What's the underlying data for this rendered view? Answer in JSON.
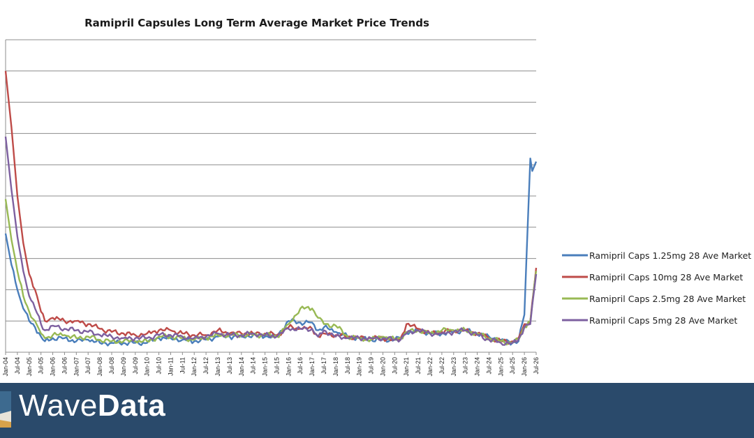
{
  "brand": {
    "name_regular": "Wave",
    "name_bold": "Data",
    "accent": "#2a4a6b"
  },
  "chart_data": {
    "type": "line",
    "title": "Ramipril Capsules Long Term Average Market Price Trends",
    "xlabel": "",
    "ylabel": "",
    "grid": true,
    "legend_position": "right",
    "ylim": [
      0,
      10
    ],
    "x_tick_labels": [
      "Jan-04",
      "Jul-04",
      "Jan-05",
      "Jul-05",
      "Jan-06",
      "Jul-06",
      "Jan-07",
      "Jul-07",
      "Jan-08",
      "Jul-08",
      "Jan-09",
      "Jul-09",
      "Jan-10",
      "Jul-10",
      "Jan-11",
      "Jul-11",
      "Jan-12",
      "Jul-12",
      "Jan-13",
      "Jul-13",
      "Jan-14",
      "Jul-14",
      "Jan-15",
      "Jul-15",
      "Jan-16",
      "Jul-16",
      "Jan-17",
      "Jul-17",
      "Jan-18",
      "Jul-18",
      "Jan-19",
      "Jul-19",
      "Jan-20",
      "Jul-20",
      "Jan-21",
      "Jul-21",
      "Jan-22",
      "Jul-22",
      "Jan-23",
      "Jul-23",
      "Jan-24",
      "Jul-24",
      "Jan-25",
      "Jul-25",
      "Jan-26",
      "Jul-26"
    ],
    "series": [
      {
        "name": "Ramipril Caps 1.25mg 28 Ave Market",
        "color": "#4a7ebb",
        "points": [
          [
            "2004-01",
            3.8
          ],
          [
            "2004-04",
            2.8
          ],
          [
            "2004-07",
            2.0
          ],
          [
            "2004-10",
            1.4
          ],
          [
            "2005-01",
            1.0
          ],
          [
            "2005-04",
            0.8
          ],
          [
            "2005-07",
            0.5
          ],
          [
            "2005-09",
            0.35
          ],
          [
            "2006-01",
            0.45
          ],
          [
            "2006-07",
            0.45
          ],
          [
            "2007-01",
            0.35
          ],
          [
            "2007-07",
            0.4
          ],
          [
            "2008-01",
            0.3
          ],
          [
            "2008-07",
            0.3
          ],
          [
            "2009-01",
            0.3
          ],
          [
            "2009-07",
            0.3
          ],
          [
            "2010-01",
            0.3
          ],
          [
            "2010-07",
            0.45
          ],
          [
            "2011-01",
            0.45
          ],
          [
            "2011-07",
            0.4
          ],
          [
            "2012-01",
            0.35
          ],
          [
            "2012-07",
            0.4
          ],
          [
            "2013-01",
            0.5
          ],
          [
            "2013-07",
            0.5
          ],
          [
            "2014-01",
            0.5
          ],
          [
            "2014-07",
            0.55
          ],
          [
            "2015-01",
            0.5
          ],
          [
            "2015-07",
            0.5
          ],
          [
            "2016-01",
            1.0
          ],
          [
            "2016-07",
            0.95
          ],
          [
            "2017-01",
            0.95
          ],
          [
            "2017-04",
            0.7
          ],
          [
            "2017-07",
            0.8
          ],
          [
            "2018-01",
            0.65
          ],
          [
            "2018-07",
            0.5
          ],
          [
            "2019-01",
            0.45
          ],
          [
            "2019-07",
            0.4
          ],
          [
            "2020-01",
            0.4
          ],
          [
            "2020-07",
            0.4
          ],
          [
            "2020-10",
            0.45
          ],
          [
            "2021-01",
            0.6
          ],
          [
            "2021-07",
            0.7
          ],
          [
            "2022-01",
            0.6
          ],
          [
            "2022-07",
            0.6
          ],
          [
            "2023-01",
            0.65
          ],
          [
            "2023-07",
            0.7
          ],
          [
            "2024-01",
            0.6
          ],
          [
            "2024-07",
            0.5
          ],
          [
            "2025-01",
            0.4
          ],
          [
            "2025-07",
            0.3
          ],
          [
            "2025-10",
            0.35
          ],
          [
            "2026-01",
            1.2
          ],
          [
            "2026-04",
            6.2
          ],
          [
            "2026-05",
            5.8
          ],
          [
            "2026-07",
            6.1
          ]
        ]
      },
      {
        "name": "Ramipril Caps 10mg 28 Ave Market",
        "color": "#be4b48",
        "points": [
          [
            "2004-01",
            9.0
          ],
          [
            "2004-04",
            7.2
          ],
          [
            "2004-07",
            5.0
          ],
          [
            "2004-10",
            3.5
          ],
          [
            "2005-01",
            2.5
          ],
          [
            "2005-04",
            2.0
          ],
          [
            "2005-07",
            1.3
          ],
          [
            "2005-09",
            1.0
          ],
          [
            "2006-01",
            1.1
          ],
          [
            "2006-07",
            1.0
          ],
          [
            "2007-01",
            1.0
          ],
          [
            "2007-07",
            0.9
          ],
          [
            "2008-01",
            0.75
          ],
          [
            "2008-07",
            0.65
          ],
          [
            "2009-01",
            0.6
          ],
          [
            "2009-07",
            0.55
          ],
          [
            "2010-01",
            0.6
          ],
          [
            "2010-07",
            0.7
          ],
          [
            "2011-01",
            0.7
          ],
          [
            "2011-07",
            0.6
          ],
          [
            "2012-01",
            0.55
          ],
          [
            "2012-07",
            0.55
          ],
          [
            "2013-01",
            0.7
          ],
          [
            "2013-07",
            0.6
          ],
          [
            "2014-01",
            0.6
          ],
          [
            "2014-07",
            0.6
          ],
          [
            "2015-01",
            0.6
          ],
          [
            "2015-07",
            0.55
          ],
          [
            "2016-01",
            0.8
          ],
          [
            "2016-07",
            0.75
          ],
          [
            "2017-01",
            0.75
          ],
          [
            "2017-04",
            0.5
          ],
          [
            "2017-07",
            0.6
          ],
          [
            "2018-01",
            0.55
          ],
          [
            "2018-07",
            0.5
          ],
          [
            "2019-01",
            0.45
          ],
          [
            "2019-07",
            0.45
          ],
          [
            "2020-01",
            0.45
          ],
          [
            "2020-07",
            0.4
          ],
          [
            "2020-10",
            0.45
          ],
          [
            "2021-01",
            0.9
          ],
          [
            "2021-07",
            0.75
          ],
          [
            "2022-01",
            0.6
          ],
          [
            "2022-07",
            0.65
          ],
          [
            "2023-01",
            0.7
          ],
          [
            "2023-07",
            0.7
          ],
          [
            "2024-01",
            0.6
          ],
          [
            "2024-07",
            0.45
          ],
          [
            "2025-01",
            0.35
          ],
          [
            "2025-07",
            0.35
          ],
          [
            "2025-10",
            0.45
          ],
          [
            "2026-01",
            0.9
          ],
          [
            "2026-04",
            1.0
          ],
          [
            "2026-07",
            2.7
          ]
        ]
      },
      {
        "name": "Ramipril Caps 2.5mg 28 Ave Market",
        "color": "#98b954",
        "points": [
          [
            "2004-01",
            4.9
          ],
          [
            "2004-04",
            3.6
          ],
          [
            "2004-07",
            2.6
          ],
          [
            "2004-10",
            1.8
          ],
          [
            "2005-01",
            1.3
          ],
          [
            "2005-04",
            1.0
          ],
          [
            "2005-07",
            0.6
          ],
          [
            "2005-09",
            0.45
          ],
          [
            "2006-01",
            0.55
          ],
          [
            "2006-07",
            0.55
          ],
          [
            "2007-01",
            0.45
          ],
          [
            "2007-07",
            0.5
          ],
          [
            "2008-01",
            0.4
          ],
          [
            "2008-07",
            0.35
          ],
          [
            "2009-01",
            0.35
          ],
          [
            "2009-07",
            0.35
          ],
          [
            "2010-01",
            0.35
          ],
          [
            "2010-07",
            0.5
          ],
          [
            "2011-01",
            0.5
          ],
          [
            "2011-07",
            0.45
          ],
          [
            "2012-01",
            0.4
          ],
          [
            "2012-07",
            0.45
          ],
          [
            "2013-01",
            0.55
          ],
          [
            "2013-07",
            0.55
          ],
          [
            "2014-01",
            0.55
          ],
          [
            "2014-07",
            0.55
          ],
          [
            "2015-01",
            0.55
          ],
          [
            "2015-07",
            0.5
          ],
          [
            "2016-01",
            0.9
          ],
          [
            "2016-07",
            1.4
          ],
          [
            "2017-01",
            1.4
          ],
          [
            "2017-04",
            1.1
          ],
          [
            "2017-07",
            0.9
          ],
          [
            "2018-01",
            0.85
          ],
          [
            "2018-07",
            0.5
          ],
          [
            "2019-01",
            0.45
          ],
          [
            "2019-07",
            0.4
          ],
          [
            "2020-01",
            0.5
          ],
          [
            "2020-07",
            0.4
          ],
          [
            "2020-10",
            0.45
          ],
          [
            "2021-01",
            0.65
          ],
          [
            "2021-07",
            0.7
          ],
          [
            "2022-01",
            0.6
          ],
          [
            "2022-07",
            0.7
          ],
          [
            "2023-01",
            0.7
          ],
          [
            "2023-07",
            0.7
          ],
          [
            "2024-01",
            0.6
          ],
          [
            "2024-07",
            0.45
          ],
          [
            "2025-01",
            0.35
          ],
          [
            "2025-07",
            0.3
          ],
          [
            "2025-10",
            0.4
          ],
          [
            "2026-01",
            0.8
          ],
          [
            "2026-04",
            1.0
          ],
          [
            "2026-07",
            2.6
          ]
        ]
      },
      {
        "name": "Ramipril Caps 5mg 28 Ave Market",
        "color": "#7d60a0",
        "points": [
          [
            "2004-01",
            6.9
          ],
          [
            "2004-04",
            5.2
          ],
          [
            "2004-07",
            3.7
          ],
          [
            "2004-10",
            2.6
          ],
          [
            "2005-01",
            1.8
          ],
          [
            "2005-04",
            1.4
          ],
          [
            "2005-07",
            0.9
          ],
          [
            "2005-09",
            0.7
          ],
          [
            "2006-01",
            0.85
          ],
          [
            "2006-07",
            0.75
          ],
          [
            "2007-01",
            0.7
          ],
          [
            "2007-07",
            0.65
          ],
          [
            "2008-01",
            0.55
          ],
          [
            "2008-07",
            0.5
          ],
          [
            "2009-01",
            0.45
          ],
          [
            "2009-07",
            0.45
          ],
          [
            "2010-01",
            0.45
          ],
          [
            "2010-07",
            0.55
          ],
          [
            "2011-01",
            0.55
          ],
          [
            "2011-07",
            0.5
          ],
          [
            "2012-01",
            0.45
          ],
          [
            "2012-07",
            0.5
          ],
          [
            "2013-01",
            0.6
          ],
          [
            "2013-07",
            0.55
          ],
          [
            "2014-01",
            0.55
          ],
          [
            "2014-07",
            0.6
          ],
          [
            "2015-01",
            0.55
          ],
          [
            "2015-07",
            0.5
          ],
          [
            "2016-01",
            0.75
          ],
          [
            "2016-07",
            0.75
          ],
          [
            "2017-01",
            0.75
          ],
          [
            "2017-04",
            0.5
          ],
          [
            "2017-07",
            0.7
          ],
          [
            "2018-01",
            0.5
          ],
          [
            "2018-07",
            0.45
          ],
          [
            "2019-01",
            0.45
          ],
          [
            "2019-07",
            0.45
          ],
          [
            "2020-01",
            0.45
          ],
          [
            "2020-07",
            0.4
          ],
          [
            "2020-10",
            0.4
          ],
          [
            "2021-01",
            0.6
          ],
          [
            "2021-07",
            0.7
          ],
          [
            "2022-01",
            0.6
          ],
          [
            "2022-07",
            0.6
          ],
          [
            "2023-01",
            0.65
          ],
          [
            "2023-07",
            0.7
          ],
          [
            "2024-01",
            0.55
          ],
          [
            "2024-07",
            0.4
          ],
          [
            "2025-01",
            0.3
          ],
          [
            "2025-07",
            0.3
          ],
          [
            "2025-10",
            0.4
          ],
          [
            "2026-01",
            0.8
          ],
          [
            "2026-04",
            0.9
          ],
          [
            "2026-07",
            2.5
          ]
        ]
      }
    ]
  }
}
